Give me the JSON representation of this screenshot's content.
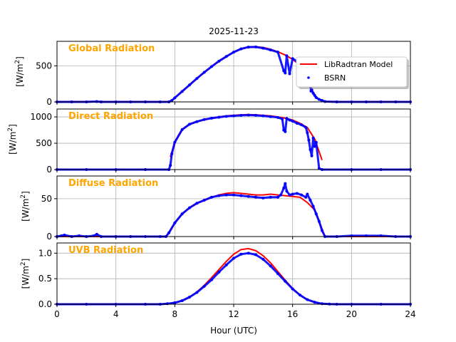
{
  "figure": {
    "title": "2025-11-23",
    "xlabel": "Hour (UTC)",
    "xlim": [
      0,
      24
    ],
    "xticks": [
      0,
      4,
      8,
      12,
      16,
      20,
      24
    ],
    "grid": true,
    "label_color": "#FFA500",
    "model_color": "#FF0000",
    "obs_color": "#0000FF"
  },
  "legend": {
    "placement": "right, in first panel",
    "model": "LibRadtran Model",
    "obs": "BSRN"
  },
  "chart_data": [
    {
      "type": "line",
      "panel_label": "Global Radiation",
      "ylabel_main": "[W/m",
      "ylabel_sup": "2",
      "ylabel_end": "]",
      "ylim": [
        0,
        840
      ],
      "yticks": [
        0,
        500
      ],
      "series": [
        {
          "name": "LibRadtran Model",
          "style": "line",
          "x": [
            0,
            7.6,
            7.8,
            8,
            8.5,
            9,
            9.5,
            10,
            10.5,
            11,
            11.5,
            12,
            12.5,
            13,
            13.5,
            14,
            14.5,
            15,
            15.5,
            16,
            16.5,
            17,
            17.3,
            17.6,
            17.9,
            18.2,
            24
          ],
          "y": [
            0,
            0,
            20,
            55,
            145,
            235,
            325,
            410,
            490,
            565,
            630,
            690,
            735,
            760,
            765,
            755,
            730,
            695,
            650,
            590,
            510,
            380,
            170,
            70,
            20,
            0,
            0
          ]
        },
        {
          "name": "BSRN",
          "style": "points",
          "x": [
            0,
            1,
            2,
            2.7,
            3,
            4,
            5,
            6,
            7,
            7.6,
            7.8,
            8,
            8.5,
            9,
            9.5,
            10,
            10.5,
            11,
            11.5,
            12,
            12.5,
            13,
            13.5,
            14,
            14.5,
            15,
            15.4,
            15.5,
            15.6,
            15.8,
            16,
            16.3,
            16.5,
            16.8,
            17.0,
            17.2,
            17.25,
            17.3,
            17.4,
            17.5,
            17.6,
            17.8,
            18.0,
            18.2,
            19,
            20,
            21,
            22,
            23,
            24
          ],
          "y": [
            0,
            0,
            0,
            5,
            0,
            0,
            0,
            0,
            0,
            0,
            20,
            55,
            145,
            235,
            325,
            410,
            490,
            565,
            630,
            690,
            735,
            760,
            762,
            745,
            720,
            690,
            430,
            400,
            640,
            390,
            600,
            560,
            500,
            420,
            330,
            240,
            150,
            170,
            120,
            90,
            60,
            35,
            20,
            5,
            0,
            0,
            0,
            0,
            0,
            0
          ]
        }
      ]
    },
    {
      "type": "line",
      "panel_label": "Direct Radiation",
      "ylabel_main": "[W/m",
      "ylabel_sup": "2",
      "ylabel_end": "]",
      "ylim": [
        0,
        1150
      ],
      "yticks": [
        0,
        500,
        1000
      ],
      "series": [
        {
          "name": "LibRadtran Model",
          "style": "line",
          "x": [
            7.7,
            8,
            8.5,
            9,
            9.5,
            10,
            10.5,
            11,
            11.5,
            12,
            12.5,
            13,
            13.5,
            14,
            14.5,
            15,
            15.5,
            16,
            16.5,
            17,
            17.5,
            18
          ],
          "y": [
            240,
            520,
            760,
            860,
            910,
            950,
            975,
            1000,
            1020,
            1030,
            1040,
            1045,
            1040,
            1030,
            1020,
            1000,
            975,
            940,
            880,
            800,
            580,
            180
          ]
        },
        {
          "name": "BSRN",
          "style": "points",
          "x": [
            0,
            2,
            4,
            6,
            7.6,
            7.7,
            7.8,
            8,
            8.5,
            9,
            9.5,
            10,
            10.5,
            11,
            11.5,
            12,
            12.5,
            13,
            13.5,
            14,
            14.5,
            15,
            15.3,
            15.4,
            15.5,
            15.6,
            15.8,
            16,
            16.3,
            16.6,
            16.9,
            17.0,
            17.1,
            17.2,
            17.3,
            17.4,
            17.5,
            17.6,
            17.8,
            18,
            20,
            22,
            24
          ],
          "y": [
            0,
            0,
            0,
            0,
            0,
            80,
            300,
            520,
            760,
            860,
            910,
            950,
            975,
            995,
            1010,
            1020,
            1030,
            1035,
            1030,
            1020,
            1005,
            990,
            960,
            750,
            720,
            970,
            940,
            920,
            880,
            850,
            800,
            700,
            560,
            380,
            260,
            600,
            440,
            520,
            20,
            0,
            0,
            0,
            0
          ]
        }
      ]
    },
    {
      "type": "line",
      "panel_label": "Diffuse Radiation",
      "ylabel_main": "[W/m",
      "ylabel_sup": "2",
      "ylabel_end": "]",
      "ylim": [
        0,
        80
      ],
      "yticks": [
        0,
        50
      ],
      "series": [
        {
          "name": "LibRadtran Model",
          "style": "line",
          "x": [
            0,
            7.4,
            7.6,
            8,
            8.5,
            9,
            9.5,
            10,
            10.5,
            11,
            11.5,
            12,
            12.5,
            13,
            13.5,
            14,
            14.5,
            15,
            15.5,
            16,
            16.5,
            17,
            17.5,
            18,
            18.2,
            24
          ],
          "y": [
            0,
            0,
            5,
            18,
            30,
            38,
            44,
            48,
            52,
            55,
            57,
            58,
            57,
            56,
            55,
            55,
            56,
            55,
            54,
            53,
            52,
            45,
            35,
            10,
            0,
            0
          ]
        },
        {
          "name": "BSRN",
          "style": "points",
          "x": [
            0,
            0.3,
            0.5,
            1,
            1.5,
            2,
            2.5,
            2.7,
            3,
            4,
            5,
            6,
            7,
            7.4,
            7.6,
            8,
            8.5,
            9,
            9.5,
            10,
            10.5,
            11,
            11.5,
            12,
            12.5,
            13,
            13.5,
            14,
            14.5,
            15,
            15.2,
            15.4,
            15.5,
            15.6,
            15.8,
            16,
            16.3,
            16.6,
            16.9,
            17.0,
            17.2,
            17.4,
            17.6,
            17.8,
            18,
            18.2,
            19,
            20,
            21,
            22,
            23,
            24
          ],
          "y": [
            0,
            1,
            2,
            0,
            1,
            0,
            1,
            3,
            0,
            0,
            0,
            0,
            0,
            0,
            5,
            18,
            30,
            38,
            44,
            48,
            52,
            54,
            55,
            55,
            54,
            53,
            52,
            51,
            52,
            52,
            55,
            64,
            70,
            60,
            55,
            56,
            57,
            55,
            52,
            56,
            48,
            40,
            30,
            20,
            8,
            0,
            0,
            1,
            1,
            1,
            0,
            0
          ]
        }
      ]
    },
    {
      "type": "line",
      "panel_label": "UVB Radiation",
      "ylabel_main": "[W/m",
      "ylabel_sup": "2",
      "ylabel_end": "]",
      "ylim": [
        0,
        1.2
      ],
      "yticks": [
        "0.0",
        "0.5",
        "1.0"
      ],
      "series": [
        {
          "name": "LibRadtran Model",
          "style": "line",
          "x": [
            0,
            7,
            7.5,
            8,
            8.5,
            9,
            9.5,
            10,
            10.5,
            11,
            11.5,
            12,
            12.5,
            13,
            13.5,
            14,
            14.5,
            15,
            15.5,
            16,
            16.5,
            17,
            17.5,
            18,
            18.5,
            19,
            24
          ],
          "y": [
            0,
            0,
            0.01,
            0.03,
            0.07,
            0.14,
            0.24,
            0.37,
            0.52,
            0.68,
            0.84,
            0.98,
            1.07,
            1.09,
            1.05,
            0.95,
            0.81,
            0.64,
            0.47,
            0.31,
            0.18,
            0.09,
            0.04,
            0.01,
            0.003,
            0,
            0
          ]
        },
        {
          "name": "BSRN",
          "style": "points",
          "x": [
            0,
            2,
            4,
            6,
            7,
            7.5,
            8,
            8.5,
            9,
            9.5,
            10,
            10.5,
            11,
            11.5,
            12,
            12.5,
            13,
            13.5,
            14,
            14.5,
            15,
            15.5,
            16,
            16.5,
            17,
            17.5,
            18,
            18.5,
            19,
            20,
            22,
            24
          ],
          "y": [
            0,
            0,
            0,
            0,
            0,
            0.01,
            0.03,
            0.07,
            0.14,
            0.23,
            0.35,
            0.48,
            0.63,
            0.77,
            0.9,
            0.98,
            1.0,
            0.97,
            0.88,
            0.75,
            0.6,
            0.45,
            0.3,
            0.18,
            0.09,
            0.04,
            0.01,
            0.003,
            0,
            0,
            0,
            0
          ]
        }
      ]
    }
  ]
}
